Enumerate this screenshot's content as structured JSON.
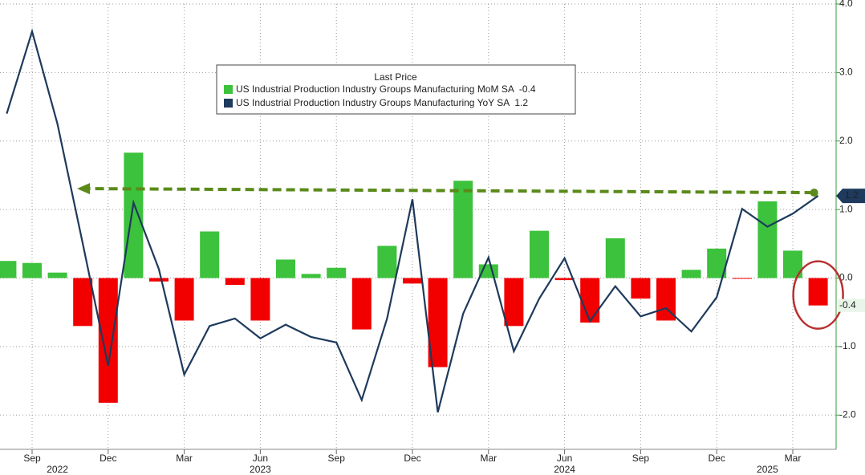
{
  "chart_data": {
    "type": "bar_line",
    "legend_title": "Last Price",
    "categories": [
      null,
      "Sep",
      null,
      null,
      "Dec",
      null,
      null,
      "Mar",
      null,
      null,
      "Jun",
      null,
      null,
      "Sep",
      null,
      null,
      "Dec",
      null,
      null,
      "Mar",
      null,
      null,
      "Jun",
      null,
      null,
      "Sep",
      null,
      null,
      "Dec",
      null,
      null,
      "Mar",
      null
    ],
    "year_labels": [
      null,
      null,
      "2022",
      null,
      null,
      null,
      null,
      null,
      null,
      null,
      "2023",
      null,
      null,
      null,
      null,
      null,
      null,
      null,
      null,
      null,
      null,
      null,
      "2024",
      null,
      null,
      null,
      null,
      null,
      null,
      null,
      "2025",
      null,
      null
    ],
    "series": [
      {
        "name": "US Industrial Production Industry Groups Manufacturing MoM SA",
        "last_label": "-0.4",
        "type": "bar",
        "color": "#3cc23c",
        "negative_color": "#f20000",
        "values": [
          0.25,
          0.22,
          0.08,
          -0.7,
          -1.82,
          1.83,
          -0.05,
          -0.62,
          0.68,
          -0.1,
          -0.62,
          0.27,
          0.06,
          0.15,
          -0.75,
          0.47,
          -0.08,
          -1.3,
          1.42,
          0.2,
          -0.7,
          0.69,
          -0.03,
          -0.65,
          0.58,
          -0.3,
          -0.62,
          0.12,
          0.43,
          -0.01,
          1.12,
          0.4,
          -0.4
        ]
      },
      {
        "name": "US Industrial Production Industry Groups Manufacturing YoY SA",
        "last_label": "1.2",
        "type": "line",
        "color": "#1e3a5c",
        "values": [
          2.4,
          3.6,
          2.25,
          0.5,
          -1.28,
          1.1,
          0.13,
          -1.41,
          -0.7,
          -0.59,
          -0.88,
          -0.68,
          -0.86,
          -0.94,
          -1.78,
          -0.59,
          1.15,
          -1.96,
          -0.52,
          0.3,
          -1.07,
          -0.3,
          0.29,
          -0.63,
          -0.12,
          -0.56,
          -0.44,
          -0.78,
          -0.28,
          1.01,
          0.75,
          0.94,
          1.2
        ]
      }
    ],
    "ylim": [
      -2.5,
      4.0
    ],
    "yticks": [
      {
        "value": 4,
        "label": "4.0"
      },
      {
        "value": 3,
        "label": "3.0"
      },
      {
        "value": 2,
        "label": "2.0"
      },
      {
        "value": 1,
        "label": "1.0"
      },
      {
        "value": 0,
        "label": "0.0"
      },
      {
        "value": -1,
        "label": "-1.0"
      },
      {
        "value": -2,
        "label": "-2.0"
      }
    ],
    "grid": true
  }
}
